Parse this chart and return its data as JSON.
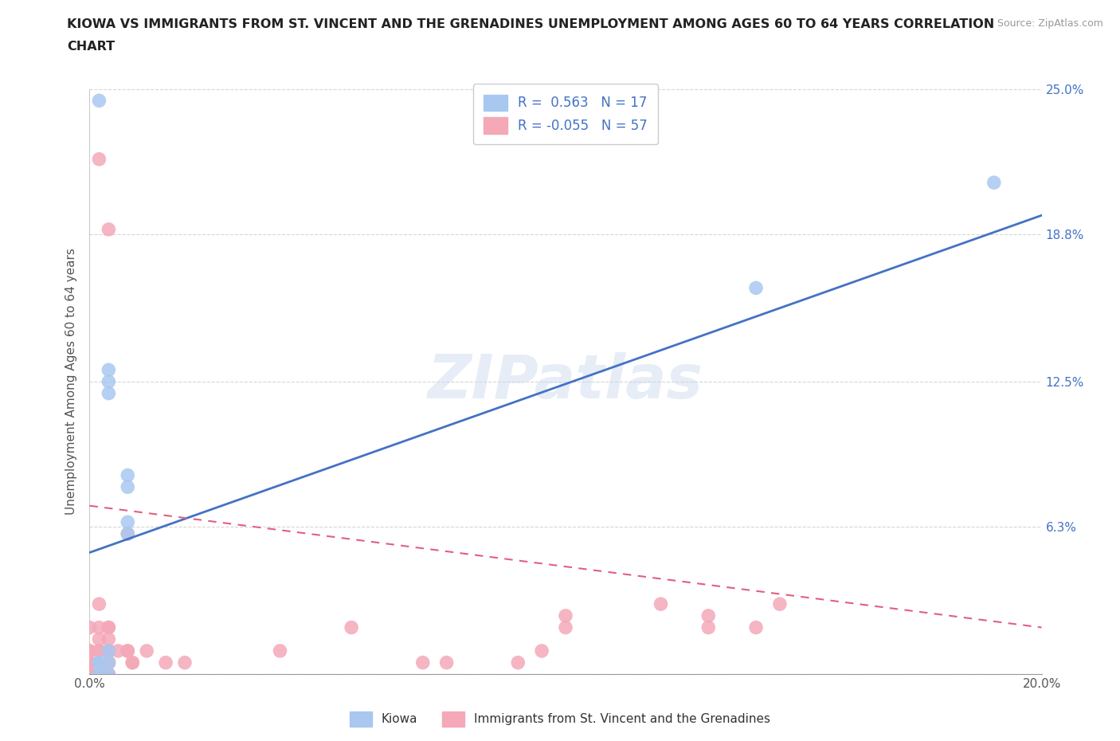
{
  "title_line1": "KIOWA VS IMMIGRANTS FROM ST. VINCENT AND THE GRENADINES UNEMPLOYMENT AMONG AGES 60 TO 64 YEARS CORRELATION",
  "title_line2": "CHART",
  "source": "Source: ZipAtlas.com",
  "ylabel": "Unemployment Among Ages 60 to 64 years",
  "xlim": [
    0.0,
    0.2
  ],
  "ylim": [
    0.0,
    0.25
  ],
  "xticks": [
    0.0,
    0.05,
    0.1,
    0.15,
    0.2
  ],
  "xticklabels": [
    "0.0%",
    "",
    "",
    "",
    "20.0%"
  ],
  "yticks": [
    0.0,
    0.063,
    0.125,
    0.188,
    0.25
  ],
  "yticklabels": [
    "",
    "6.3%",
    "12.5%",
    "18.8%",
    "25.0%"
  ],
  "kiowa_R": 0.563,
  "kiowa_N": 17,
  "immigrants_R": -0.055,
  "immigrants_N": 57,
  "kiowa_color": "#a8c8f0",
  "immigrants_color": "#f4a8b8",
  "kiowa_line_color": "#4472c4",
  "immigrants_line_color": "#e06080",
  "watermark": "ZIPatlas",
  "legend_label_1": "Kiowa",
  "legend_label_2": "Immigrants from St. Vincent and the Grenadines",
  "kiowa_x": [
    0.002,
    0.002,
    0.002,
    0.002,
    0.002,
    0.004,
    0.004,
    0.004,
    0.004,
    0.004,
    0.004,
    0.008,
    0.008,
    0.008,
    0.008,
    0.14,
    0.19
  ],
  "kiowa_y": [
    0.0,
    0.0,
    0.005,
    0.005,
    0.245,
    0.0,
    0.005,
    0.01,
    0.125,
    0.12,
    0.13,
    0.065,
    0.06,
    0.08,
    0.085,
    0.165,
    0.21
  ],
  "immigrants_x": [
    0.0,
    0.0,
    0.0,
    0.0,
    0.0,
    0.0,
    0.0,
    0.0,
    0.0,
    0.0,
    0.002,
    0.002,
    0.002,
    0.002,
    0.002,
    0.002,
    0.002,
    0.002,
    0.002,
    0.002,
    0.002,
    0.002,
    0.004,
    0.004,
    0.004,
    0.004,
    0.004,
    0.004,
    0.004,
    0.004,
    0.004,
    0.004,
    0.004,
    0.004,
    0.004,
    0.006,
    0.008,
    0.008,
    0.008,
    0.009,
    0.009,
    0.012,
    0.016,
    0.02,
    0.04,
    0.055,
    0.07,
    0.075,
    0.09,
    0.095,
    0.1,
    0.1,
    0.12,
    0.13,
    0.13,
    0.14,
    0.145
  ],
  "immigrants_y": [
    0.0,
    0.0,
    0.0,
    0.0,
    0.005,
    0.005,
    0.005,
    0.01,
    0.01,
    0.02,
    0.0,
    0.0,
    0.0,
    0.005,
    0.005,
    0.005,
    0.01,
    0.01,
    0.015,
    0.02,
    0.03,
    0.22,
    0.0,
    0.0,
    0.005,
    0.005,
    0.005,
    0.005,
    0.01,
    0.01,
    0.01,
    0.015,
    0.02,
    0.02,
    0.19,
    0.01,
    0.01,
    0.01,
    0.06,
    0.005,
    0.005,
    0.01,
    0.005,
    0.005,
    0.01,
    0.02,
    0.005,
    0.005,
    0.005,
    0.01,
    0.02,
    0.025,
    0.03,
    0.02,
    0.025,
    0.02,
    0.03
  ],
  "kiowa_trend_x": [
    0.0,
    0.2
  ],
  "kiowa_trend_y": [
    0.052,
    0.196
  ],
  "immigrants_trend_x": [
    0.0,
    0.2
  ],
  "immigrants_trend_y": [
    0.072,
    0.02
  ]
}
